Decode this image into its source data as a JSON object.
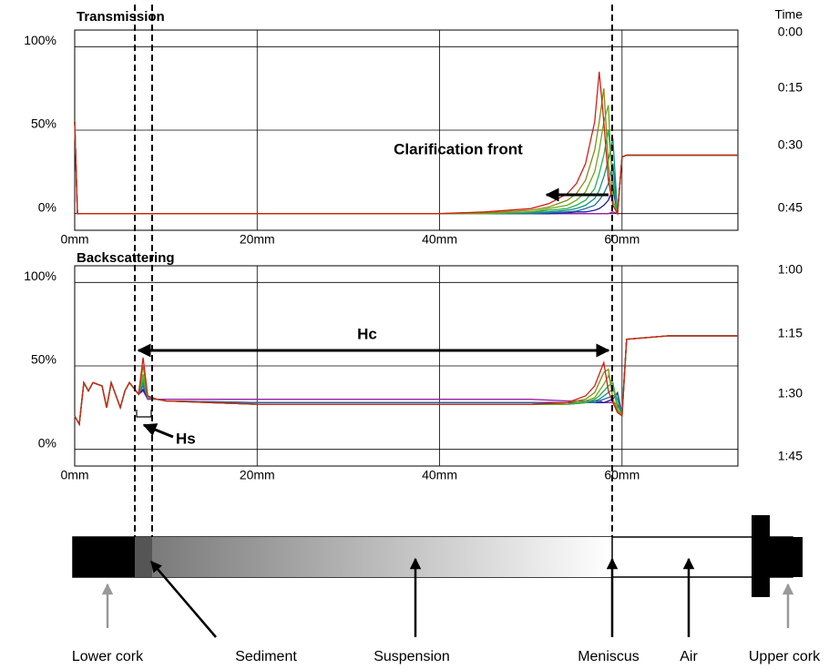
{
  "chart_data": [
    {
      "type": "line",
      "title": "Transmission",
      "x": [
        0,
        0.3,
        1,
        20,
        40,
        45,
        50,
        52,
        54,
        55,
        56,
        57,
        57.5,
        58,
        58.5,
        59,
        59.5,
        60,
        60.5,
        65,
        72.7
      ],
      "series": [
        {
          "color": "#9b1fa0",
          "values": [
            55,
            0,
            0,
            0,
            0,
            0,
            0,
            0,
            0,
            0,
            0,
            0,
            0,
            0,
            0,
            1,
            0,
            34,
            35,
            35,
            35
          ]
        },
        {
          "color": "#1a1aa8",
          "values": [
            55,
            0,
            0,
            0,
            0,
            0,
            0,
            0,
            0.5,
            1,
            1,
            2,
            3,
            5,
            8,
            15,
            0,
            34,
            35,
            35,
            35
          ]
        },
        {
          "color": "#1d6fa5",
          "values": [
            55,
            0,
            0,
            0,
            0,
            0,
            0,
            0.5,
            1,
            1.5,
            3,
            5,
            8,
            12,
            18,
            30,
            0,
            34,
            35,
            35,
            35
          ]
        },
        {
          "color": "#138f8a",
          "values": [
            55,
            0,
            0,
            0,
            0,
            0,
            0.5,
            1,
            2,
            3,
            5,
            9,
            14,
            22,
            32,
            45,
            0,
            34,
            35,
            35,
            35
          ]
        },
        {
          "color": "#22b14c",
          "values": [
            55,
            0,
            0,
            0,
            0,
            0,
            1,
            2,
            3,
            5,
            8,
            15,
            24,
            35,
            50,
            20,
            0,
            34,
            35,
            35,
            35
          ]
        },
        {
          "color": "#6aaa1e",
          "values": [
            55,
            0,
            0,
            0,
            0,
            0,
            1,
            3,
            5,
            8,
            13,
            25,
            38,
            55,
            65,
            8,
            0,
            34,
            35,
            35,
            35
          ]
        },
        {
          "color": "#8a8a10",
          "values": [
            55,
            0,
            0,
            0,
            0,
            0.5,
            2,
            4,
            8,
            12,
            20,
            38,
            55,
            75,
            30,
            5,
            0,
            34,
            35,
            35,
            35
          ]
        },
        {
          "color": "#d0201a",
          "values": [
            55,
            0,
            0,
            0,
            0,
            1,
            3,
            6,
            12,
            18,
            30,
            55,
            85,
            55,
            20,
            5,
            0,
            34,
            35,
            35,
            35
          ]
        }
      ],
      "xlim": [
        0,
        72.7
      ],
      "xticks": [
        {
          "value": 0,
          "label": "0mm"
        },
        {
          "value": 20,
          "label": "20mm"
        },
        {
          "value": 40,
          "label": "40mm"
        },
        {
          "value": 60,
          "label": "60mm"
        }
      ],
      "ylim": [
        -10,
        110
      ],
      "yticks": [
        {
          "value": 0,
          "label": "0%"
        },
        {
          "value": 50,
          "label": "50%"
        },
        {
          "value": 100,
          "label": "100%"
        }
      ],
      "grid": true,
      "annotations": {
        "clarification_front": "Clarification front"
      }
    },
    {
      "type": "line",
      "title": "Backscattering",
      "x": [
        0,
        0.5,
        1,
        1.5,
        2,
        3,
        3.5,
        4,
        5,
        5.5,
        6,
        7,
        7.5,
        8,
        9,
        10,
        20,
        40,
        50,
        54,
        56,
        57,
        57.5,
        58,
        58.5,
        59,
        59.5,
        60,
        60.5,
        65,
        72.7
      ],
      "series": [
        {
          "color": "#9b1fa0",
          "values": [
            20,
            15,
            40,
            35,
            40,
            38,
            25,
            40,
            25,
            35,
            40,
            33,
            35,
            30,
            30,
            30,
            30,
            30,
            30,
            29,
            29,
            29,
            29,
            28,
            28,
            28,
            27,
            22,
            66,
            68,
            68
          ]
        },
        {
          "color": "#1a1aa8",
          "values": [
            20,
            15,
            40,
            35,
            40,
            38,
            25,
            40,
            25,
            35,
            40,
            33,
            36,
            31,
            30,
            29,
            28,
            28,
            28,
            28,
            28,
            28,
            28,
            28,
            29,
            30,
            34,
            22,
            66,
            68,
            68
          ]
        },
        {
          "color": "#1d6fa5",
          "values": [
            20,
            15,
            40,
            35,
            40,
            38,
            25,
            40,
            25,
            35,
            40,
            33,
            38,
            31,
            30,
            29,
            28,
            28,
            28,
            27,
            28,
            28,
            29,
            30,
            31,
            32,
            33,
            22,
            66,
            68,
            68
          ]
        },
        {
          "color": "#138f8a",
          "values": [
            20,
            15,
            40,
            35,
            40,
            38,
            25,
            40,
            25,
            35,
            40,
            33,
            40,
            31,
            30,
            29,
            27,
            27,
            27,
            27,
            28,
            29,
            30,
            32,
            34,
            36,
            30,
            21,
            66,
            68,
            68
          ]
        },
        {
          "color": "#22b14c",
          "values": [
            20,
            15,
            40,
            35,
            40,
            38,
            25,
            40,
            25,
            35,
            40,
            33,
            42,
            31,
            30,
            29,
            27,
            27,
            27,
            27,
            28,
            30,
            32,
            35,
            38,
            40,
            26,
            21,
            66,
            68,
            68
          ]
        },
        {
          "color": "#6aaa1e",
          "values": [
            20,
            15,
            40,
            35,
            40,
            38,
            25,
            40,
            25,
            35,
            40,
            33,
            45,
            32,
            30,
            29,
            27,
            27,
            27,
            27,
            29,
            31,
            35,
            39,
            44,
            38,
            24,
            20,
            66,
            68,
            68
          ]
        },
        {
          "color": "#8a8a10",
          "values": [
            20,
            15,
            40,
            35,
            40,
            38,
            25,
            40,
            25,
            35,
            40,
            33,
            50,
            32,
            30,
            29,
            27,
            27,
            27,
            28,
            30,
            34,
            40,
            46,
            48,
            30,
            23,
            20,
            66,
            68,
            68
          ]
        },
        {
          "color": "#d0201a",
          "values": [
            20,
            15,
            40,
            35,
            40,
            38,
            25,
            40,
            25,
            35,
            40,
            33,
            55,
            32,
            30,
            29,
            27,
            27,
            27,
            28,
            32,
            38,
            45,
            52,
            35,
            28,
            22,
            20,
            66,
            68,
            68
          ]
        }
      ],
      "xlim": [
        0,
        72.7
      ],
      "xticks": [
        {
          "value": 0,
          "label": "0mm"
        },
        {
          "value": 20,
          "label": "20mm"
        },
        {
          "value": 40,
          "label": "40mm"
        },
        {
          "value": 60,
          "label": "60mm"
        }
      ],
      "ylim": [
        -10,
        110
      ],
      "yticks": [
        {
          "value": 0,
          "label": "0%"
        },
        {
          "value": 50,
          "label": "50%"
        },
        {
          "value": 100,
          "label": "100%"
        }
      ],
      "grid": true,
      "annotations": {
        "hc": "Hc",
        "hs": "Hs"
      }
    }
  ],
  "legend": {
    "title": "Time",
    "entries": [
      {
        "name": "0:00",
        "color": "#9b1fa0"
      },
      {
        "name": "0:15",
        "color": "#1a1aa8"
      },
      {
        "name": "0:30",
        "color": "#1d6fa5"
      },
      {
        "name": "0:45",
        "color": "#138f8a"
      },
      {
        "name": "1:00",
        "color": "#22b14c"
      },
      {
        "name": "1:15",
        "color": "#6aaa1e"
      },
      {
        "name": "1:30",
        "color": "#8a8a10"
      },
      {
        "name": "1:45",
        "color": "#d0201a"
      }
    ]
  },
  "diagram": {
    "labels": [
      "Lower cork",
      "Sediment",
      "Suspension",
      "Meniscus",
      "Air",
      "Upper cork"
    ]
  }
}
